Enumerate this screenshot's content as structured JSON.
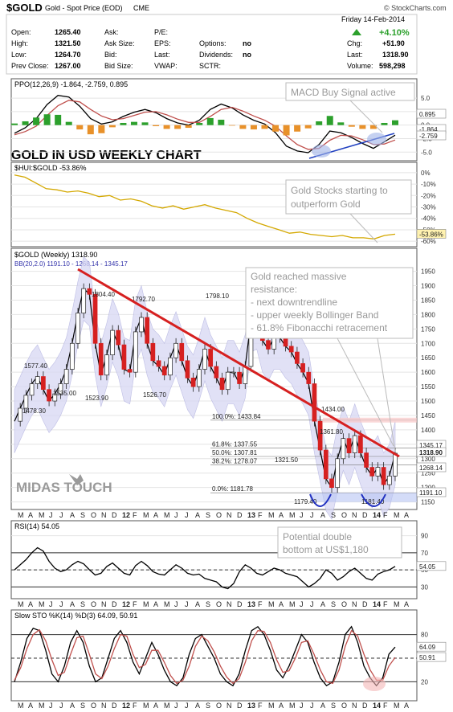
{
  "header": {
    "symbol": "$GOLD",
    "name": "Gold - Spot Price (EOD)",
    "exchange": "CME",
    "source": "© StockCharts.com",
    "date": "Friday 14-Feb-2014",
    "stats_left": [
      {
        "label": "Open:",
        "value": "1265.40"
      },
      {
        "label": "High:",
        "value": "1321.50"
      },
      {
        "label": "Low:",
        "value": "1264.70"
      },
      {
        "label": "Prev Close:",
        "value": "1267.00"
      }
    ],
    "stats_mid": [
      {
        "label": "Ask:",
        "value": ""
      },
      {
        "label": "Ask Size:",
        "value": ""
      },
      {
        "label": "Bid:",
        "value": ""
      },
      {
        "label": "Bid Size:",
        "value": ""
      }
    ],
    "stats_mid2": [
      {
        "label": "P/E:",
        "value": ""
      },
      {
        "label": "EPS:",
        "value": ""
      },
      {
        "label": "Last:",
        "value": ""
      },
      {
        "label": "VWAP:",
        "value": ""
      }
    ],
    "stats_mid3": [
      {
        "label": "",
        "value": ""
      },
      {
        "label": "Options:",
        "value": "no"
      },
      {
        "label": "Dividends:",
        "value": "no"
      },
      {
        "label": "SCTR:",
        "value": ""
      }
    ],
    "stats_right": [
      {
        "label": "",
        "value": "+4.10%"
      },
      {
        "label": "Chg:",
        "value": "+51.90"
      },
      {
        "label": "Last:",
        "value": "1318.90"
      },
      {
        "label": "Volume:",
        "value": "598,298"
      }
    ],
    "up_color": "#2ca02c"
  },
  "x_axis_labels": [
    "M",
    "A",
    "M",
    "J",
    "J",
    "A",
    "S",
    "O",
    "N",
    "D",
    "12",
    "F",
    "M",
    "A",
    "M",
    "J",
    "J",
    "A",
    "S",
    "O",
    "N",
    "D",
    "13",
    "F",
    "M",
    "A",
    "M",
    "J",
    "J",
    "A",
    "S",
    "O",
    "N",
    "D",
    "14",
    "F",
    "M",
    "A"
  ],
  "chart_data": [
    {
      "type": "line",
      "title": "PPO(12,26,9) -1.864, -2.759, 0.895",
      "y_ticks": [
        "5.0",
        "2.5",
        "0.0",
        "-2.5",
        "-5.0"
      ],
      "ylim": [
        -6,
        6.5
      ],
      "series": [
        {
          "name": "PPO",
          "color": "#000000",
          "values": [
            -1.5,
            -0.5,
            1.2,
            3.8,
            5.5,
            5.2,
            3.5,
            1.2,
            0.2,
            0.6,
            1.6,
            2.4,
            2.9,
            2.3,
            1.2,
            0.4,
            0.0,
            0.9,
            2.9,
            3.9,
            3.2,
            1.9,
            0.9,
            0.2,
            -1.4,
            -3.9,
            -4.8,
            -5.1,
            -3.6,
            -1.1,
            -1.4,
            -2.3,
            -3.4,
            -4.3,
            -3.1,
            -1.864
          ]
        },
        {
          "name": "Signal",
          "color": "#c0504d",
          "values": [
            -1.8,
            -1.2,
            -0.2,
            1.8,
            3.6,
            4.6,
            4.3,
            2.9,
            1.7,
            1.0,
            1.2,
            1.8,
            2.4,
            2.5,
            1.9,
            1.1,
            0.5,
            0.5,
            1.6,
            2.9,
            3.3,
            2.6,
            1.7,
            0.9,
            -0.2,
            -2.0,
            -3.6,
            -4.5,
            -4.3,
            -2.8,
            -1.9,
            -2.0,
            -2.7,
            -3.6,
            -3.5,
            -2.759
          ]
        },
        {
          "name": "Histogram",
          "color": "#2ca02c",
          "values": [
            0.3,
            0.7,
            1.4,
            2.0,
            1.9,
            0.6,
            -0.8,
            -1.7,
            -1.5,
            -0.4,
            0.4,
            0.6,
            0.5,
            -0.2,
            -0.7,
            -0.7,
            -0.5,
            0.4,
            1.3,
            1.0,
            -0.1,
            -0.7,
            -0.8,
            -0.7,
            -1.2,
            -1.9,
            -1.2,
            -0.6,
            0.7,
            1.7,
            0.5,
            -0.3,
            -0.7,
            -0.7,
            0.4,
            0.895
          ]
        }
      ],
      "value_labels": [
        "0.895",
        "-1.864",
        "-2.759"
      ],
      "annotation": "MACD Buy Signal active"
    },
    {
      "type": "line",
      "title": "$HUI:$GOLD -53.86%",
      "y_ticks": [
        "0%",
        "-10%",
        "-20%",
        "-30%",
        "-40%",
        "-50%",
        "-60%"
      ],
      "ylim": [
        -62,
        2
      ],
      "series": [
        {
          "name": "$HUI:$GOLD",
          "color": "#d4a800",
          "values": [
            -2,
            -4,
            -9,
            -14,
            -15,
            -17,
            -16,
            -18,
            -21,
            -20,
            -24,
            -23,
            -25,
            -29,
            -31,
            -29,
            -32,
            -30,
            -28,
            -31,
            -33,
            -35,
            -40,
            -44,
            -47,
            -50,
            -53,
            -52,
            -54,
            -55,
            -56,
            -55,
            -57,
            -57,
            -58,
            -55,
            -53.86
          ]
        }
      ],
      "value_labels": [
        "-53.86%"
      ],
      "annotation": "Gold Stocks starting to outperform Gold"
    },
    {
      "type": "line",
      "title": "$GOLD (Weekly) 1318.90",
      "subtitle": "BB(20,2.0) 1191.10 - 1268.14 - 1345.17",
      "chart_title": "GOLD IN USD WEEKLY CHART",
      "y_ticks": [
        "1950",
        "1900",
        "1850",
        "1800",
        "1750",
        "1700",
        "1650",
        "1600",
        "1550",
        "1500",
        "1450",
        "1400",
        "1350",
        "1300",
        "1250",
        "1200",
        "1150"
      ],
      "ylim": [
        1135,
        1960
      ],
      "series": [
        {
          "name": "$GOLD",
          "color": "#000000",
          "values": [
            1430,
            1475,
            1520,
            1560,
            1585,
            1540,
            1500,
            1525,
            1560,
            1610,
            1700,
            1805,
            1890,
            1870,
            1700,
            1590,
            1660,
            1745,
            1695,
            1610,
            1600,
            1740,
            1790,
            1700,
            1640,
            1620,
            1590,
            1650,
            1700,
            1640,
            1580,
            1550,
            1610,
            1680,
            1620,
            1580,
            1540,
            1600,
            1600,
            1560,
            1620,
            1780,
            1790,
            1710,
            1680,
            1720,
            1720,
            1690,
            1670,
            1630,
            1600,
            1560,
            1430,
            1330,
            1230,
            1200,
            1300,
            1370,
            1320,
            1380,
            1320,
            1270,
            1240,
            1270,
            1210,
            1240,
            1318.9
          ]
        }
      ],
      "bollinger": {
        "upper": 1345.17,
        "middle": 1268.14,
        "lower": 1191.1
      },
      "price_labels": [
        "1577.40",
        "1478.30",
        "1535.00",
        "1804.40",
        "1523.90",
        "1792.70",
        "1526.70",
        "1798.10",
        "1434.00",
        "1361.80",
        "1321.50",
        "1179.40",
        "1181.40"
      ],
      "fibonacci": [
        {
          "label": "100.0%: 1433.84",
          "value": 1433.84
        },
        {
          "label": "61.8%: 1337.55",
          "value": 1337.55
        },
        {
          "label": "50.0%: 1307.81",
          "value": 1307.81
        },
        {
          "label": "38.2%: 1278.07",
          "value": 1278.07
        },
        {
          "label": "0.0%: 1181.78",
          "value": 1181.78
        }
      ],
      "value_labels": [
        "1345.17",
        "1318.90",
        "1268.14",
        "1191.10"
      ],
      "annotation_title": "Gold reached massive resistance:",
      "annotation_lines": [
        "- next downtrendline",
        "- upper weekly Bollinger Band",
        "- 61.8% Fibonacchi retracement"
      ],
      "watermark": "MIDAS TOUCH"
    },
    {
      "type": "line",
      "title": "RSI(14) 54.05",
      "y_ticks": [
        "90",
        "70",
        "50",
        "30"
      ],
      "ylim": [
        20,
        100
      ],
      "series": [
        {
          "name": "RSI",
          "color": "#000000",
          "values": [
            50,
            56,
            62,
            70,
            76,
            72,
            60,
            52,
            48,
            50,
            56,
            60,
            57,
            50,
            44,
            46,
            54,
            58,
            52,
            46,
            44,
            55,
            60,
            55,
            48,
            45,
            44,
            50,
            56,
            52,
            46,
            44,
            45,
            40,
            38,
            36,
            30,
            28,
            34,
            48,
            56,
            52,
            46,
            44,
            48,
            52,
            50,
            46,
            44,
            42,
            36,
            30,
            34,
            40,
            50,
            46,
            38,
            42,
            48,
            52,
            46,
            40,
            38,
            45,
            48,
            50,
            54.05
          ]
        }
      ],
      "value_labels": [
        "54.05"
      ],
      "annotation": "Potential double bottom at US$1,180"
    },
    {
      "type": "line",
      "title": "Slow STO %K(14) %D(3) 64.09, 50.91",
      "y_ticks": [
        "80",
        "20"
      ],
      "ylim": [
        0,
        100
      ],
      "series": [
        {
          "name": "%K",
          "color": "#000000",
          "values": [
            20,
            45,
            75,
            88,
            85,
            60,
            30,
            20,
            40,
            70,
            85,
            70,
            40,
            20,
            25,
            50,
            75,
            85,
            70,
            45,
            30,
            50,
            70,
            55,
            35,
            20,
            15,
            25,
            55,
            75,
            80,
            65,
            50,
            30,
            20,
            15,
            30,
            60,
            85,
            90,
            80,
            60,
            35,
            25,
            40,
            60,
            80,
            70,
            45,
            25,
            15,
            20,
            45,
            80,
            90,
            70,
            40,
            25,
            15,
            25,
            55,
            64.09
          ]
        },
        {
          "name": "%D",
          "color": "#c0504d",
          "values": [
            22,
            38,
            62,
            80,
            86,
            72,
            48,
            28,
            32,
            55,
            76,
            78,
            55,
            30,
            24,
            40,
            62,
            80,
            78,
            55,
            38,
            42,
            60,
            60,
            45,
            28,
            18,
            22,
            40,
            65,
            78,
            72,
            58,
            40,
            26,
            18,
            24,
            45,
            72,
            85,
            84,
            70,
            48,
            32,
            34,
            50,
            70,
            72,
            55,
            35,
            20,
            18,
            35,
            65,
            85,
            78,
            55,
            35,
            22,
            22,
            40,
            50.91
          ]
        }
      ],
      "value_labels": [
        "64.09",
        "50.91"
      ]
    }
  ]
}
